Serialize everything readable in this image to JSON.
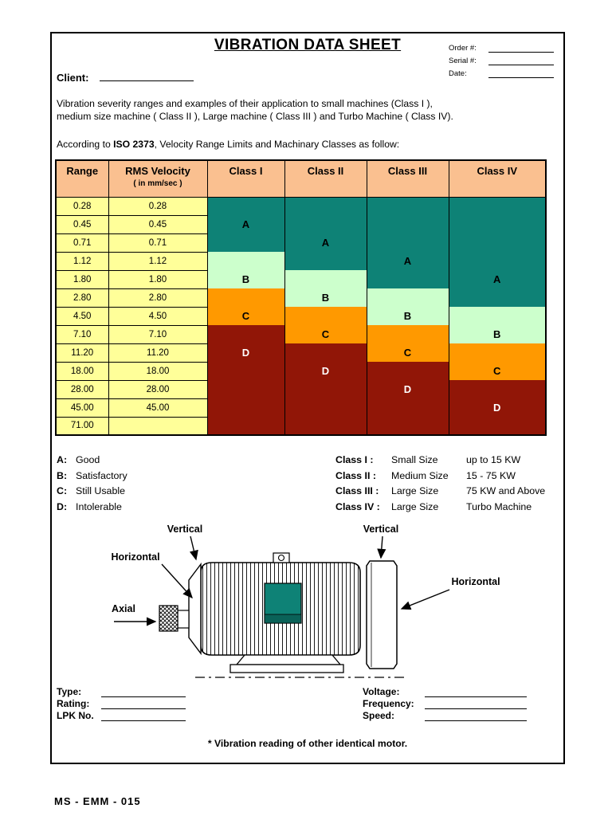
{
  "title": "VIBRATION DATA SHEET",
  "corner_fields": [
    {
      "label": "Order #:"
    },
    {
      "label": "Serial #:"
    },
    {
      "label": "Date:"
    }
  ],
  "client_label": "Client:",
  "intro": {
    "line1": "Vibration severity ranges and examples of their application to small machines (Class I ),",
    "line2": "medium size machine ( Class II ), Large machine ( Class III ) and Turbo Machine ( Class IV).",
    "iso_prefix": "According to ",
    "iso_bold": "ISO 2373",
    "iso_suffix": ", Velocity Range Limits and Machinary Classes as follow:"
  },
  "table": {
    "headers": {
      "range": "Range",
      "rms": "RMS Velocity",
      "rms_sub": "( in mm/sec )"
    },
    "range": [
      "0.28",
      "0.45",
      "0.71",
      "1.12",
      "1.80",
      "2.80",
      "4.50",
      "7.10",
      "11.20",
      "18.00",
      "28.00",
      "45.00",
      "71.00"
    ],
    "rms": [
      "0.28",
      "0.45",
      "0.71",
      "1.12",
      "1.80",
      "2.80",
      "4.50",
      "7.10",
      "11.20",
      "18.00",
      "28.00",
      "45.00",
      ""
    ],
    "classes": [
      {
        "name": "Class I",
        "zones": [
          {
            "letter": "A",
            "start": 1,
            "end": 3,
            "letter_row": 2
          },
          {
            "letter": "B",
            "start": 4,
            "end": 5,
            "letter_row": 5
          },
          {
            "letter": "C",
            "start": 6,
            "end": 7,
            "letter_row": 7
          },
          {
            "letter": "D",
            "start": 8,
            "end": 13,
            "letter_row": 9
          }
        ]
      },
      {
        "name": "Class II",
        "zones": [
          {
            "letter": "A",
            "start": 1,
            "end": 4,
            "letter_row": 3
          },
          {
            "letter": "B",
            "start": 5,
            "end": 6,
            "letter_row": 6
          },
          {
            "letter": "C",
            "start": 7,
            "end": 8,
            "letter_row": 8
          },
          {
            "letter": "D",
            "start": 9,
            "end": 13,
            "letter_row": 10
          }
        ]
      },
      {
        "name": "Class III",
        "zones": [
          {
            "letter": "A",
            "start": 1,
            "end": 5,
            "letter_row": 4
          },
          {
            "letter": "B",
            "start": 6,
            "end": 7,
            "letter_row": 7
          },
          {
            "letter": "C",
            "start": 8,
            "end": 9,
            "letter_row": 9
          },
          {
            "letter": "D",
            "start": 10,
            "end": 13,
            "letter_row": 11
          }
        ]
      },
      {
        "name": "Class IV",
        "zones": [
          {
            "letter": "A",
            "start": 1,
            "end": 6,
            "letter_row": 5
          },
          {
            "letter": "B",
            "start": 7,
            "end": 8,
            "letter_row": 8
          },
          {
            "letter": "C",
            "start": 9,
            "end": 10,
            "letter_row": 10
          },
          {
            "letter": "D",
            "start": 11,
            "end": 13,
            "letter_row": 12
          }
        ]
      }
    ],
    "colors": {
      "header": "#FAC090",
      "value_bg": "#FFFF99",
      "A": "#0E8276",
      "B": "#CCFFCC",
      "C": "#FF9900",
      "D": "#911607",
      "D_text": "#FFFFFF"
    }
  },
  "legend": {
    "grades": [
      {
        "key": "A:",
        "text": "Good"
      },
      {
        "key": "B:",
        "text": "Satisfactory"
      },
      {
        "key": "C:",
        "text": "Still Usable"
      },
      {
        "key": "D:",
        "text": "Intolerable"
      }
    ],
    "classes": [
      {
        "label": "Class I :",
        "size": "Small Size",
        "power": "up to 15 KW"
      },
      {
        "label": "Class II :",
        "size": "Medium Size",
        "power": "15 - 75 KW"
      },
      {
        "label": "Class III :",
        "size": "Large Size",
        "power": "75 KW and Above"
      },
      {
        "label": "Class IV :",
        "size": "Large Size",
        "power": "Turbo Machine"
      }
    ]
  },
  "diagram": {
    "labels": {
      "vertical_left": "Vertical",
      "horizontal_left": "Horizontal",
      "axial": "Axial",
      "vertical_right": "Vertical",
      "horizontal_right": "Horizontal"
    },
    "terminal_box_color": "#0E8276"
  },
  "bottom_fields": {
    "left": [
      {
        "label": "Type:"
      },
      {
        "label": "Rating:"
      },
      {
        "label": "LPK No."
      }
    ],
    "right": [
      {
        "label": "Voltage:"
      },
      {
        "label": "Frequency:"
      },
      {
        "label": "Speed:"
      }
    ]
  },
  "note": "* Vibration reading of other identical motor.",
  "footer_code": "MS - EMM - 015"
}
